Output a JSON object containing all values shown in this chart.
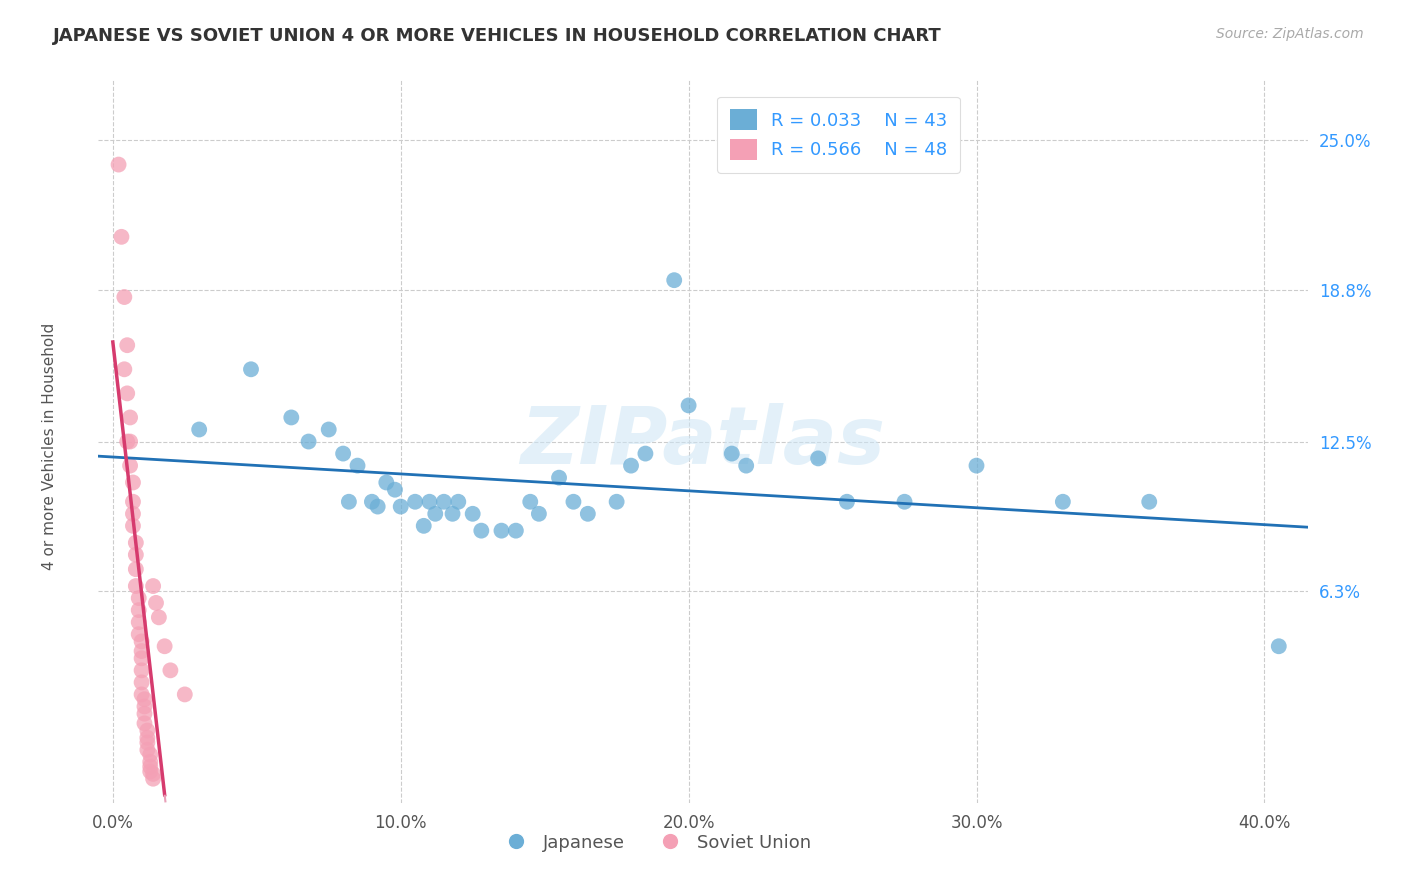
{
  "title": "JAPANESE VS SOVIET UNION 4 OR MORE VEHICLES IN HOUSEHOLD CORRELATION CHART",
  "source": "Source: ZipAtlas.com",
  "ylabel": "4 or more Vehicles in Household",
  "xlabel_ticks": [
    "0.0%",
    "10.0%",
    "20.0%",
    "30.0%",
    "40.0%"
  ],
  "xlabel_vals": [
    0.0,
    0.1,
    0.2,
    0.3,
    0.4
  ],
  "ylabel_ticks": [
    "6.3%",
    "12.5%",
    "18.8%",
    "25.0%"
  ],
  "ylabel_vals": [
    0.063,
    0.125,
    0.188,
    0.25
  ],
  "xlim": [
    -0.005,
    0.415
  ],
  "ylim": [
    -0.025,
    0.275
  ],
  "watermark": "ZIPatlas",
  "japanese_R": 0.033,
  "japanese_N": 43,
  "soviet_R": 0.566,
  "soviet_N": 48,
  "japanese_color": "#6baed6",
  "soviet_color": "#f4a0b5",
  "japanese_line_color": "#2171b5",
  "soviet_line_color": "#d63b6e",
  "soviet_line_dashed_color": "#e8a0b8",
  "grid_color": "#cccccc",
  "japanese_scatter": [
    [
      0.03,
      0.13
    ],
    [
      0.048,
      0.155
    ],
    [
      0.062,
      0.135
    ],
    [
      0.068,
      0.125
    ],
    [
      0.075,
      0.13
    ],
    [
      0.08,
      0.12
    ],
    [
      0.082,
      0.1
    ],
    [
      0.085,
      0.115
    ],
    [
      0.09,
      0.1
    ],
    [
      0.092,
      0.098
    ],
    [
      0.095,
      0.108
    ],
    [
      0.098,
      0.105
    ],
    [
      0.1,
      0.098
    ],
    [
      0.105,
      0.1
    ],
    [
      0.108,
      0.09
    ],
    [
      0.11,
      0.1
    ],
    [
      0.112,
      0.095
    ],
    [
      0.115,
      0.1
    ],
    [
      0.118,
      0.095
    ],
    [
      0.12,
      0.1
    ],
    [
      0.125,
      0.095
    ],
    [
      0.128,
      0.088
    ],
    [
      0.135,
      0.088
    ],
    [
      0.14,
      0.088
    ],
    [
      0.145,
      0.1
    ],
    [
      0.148,
      0.095
    ],
    [
      0.155,
      0.11
    ],
    [
      0.16,
      0.1
    ],
    [
      0.165,
      0.095
    ],
    [
      0.175,
      0.1
    ],
    [
      0.18,
      0.115
    ],
    [
      0.185,
      0.12
    ],
    [
      0.195,
      0.192
    ],
    [
      0.2,
      0.14
    ],
    [
      0.215,
      0.12
    ],
    [
      0.22,
      0.115
    ],
    [
      0.245,
      0.118
    ],
    [
      0.255,
      0.1
    ],
    [
      0.275,
      0.1
    ],
    [
      0.3,
      0.115
    ],
    [
      0.33,
      0.1
    ],
    [
      0.36,
      0.1
    ],
    [
      0.405,
      0.04
    ]
  ],
  "soviet_scatter": [
    [
      0.002,
      0.24
    ],
    [
      0.003,
      0.21
    ],
    [
      0.004,
      0.155
    ],
    [
      0.004,
      0.185
    ],
    [
      0.005,
      0.165
    ],
    [
      0.005,
      0.125
    ],
    [
      0.005,
      0.145
    ],
    [
      0.006,
      0.135
    ],
    [
      0.006,
      0.115
    ],
    [
      0.006,
      0.125
    ],
    [
      0.007,
      0.108
    ],
    [
      0.007,
      0.1
    ],
    [
      0.007,
      0.095
    ],
    [
      0.007,
      0.09
    ],
    [
      0.008,
      0.083
    ],
    [
      0.008,
      0.078
    ],
    [
      0.008,
      0.072
    ],
    [
      0.008,
      0.065
    ],
    [
      0.009,
      0.06
    ],
    [
      0.009,
      0.055
    ],
    [
      0.009,
      0.05
    ],
    [
      0.009,
      0.045
    ],
    [
      0.01,
      0.042
    ],
    [
      0.01,
      0.038
    ],
    [
      0.01,
      0.035
    ],
    [
      0.01,
      0.03
    ],
    [
      0.01,
      0.025
    ],
    [
      0.01,
      0.02
    ],
    [
      0.011,
      0.018
    ],
    [
      0.011,
      0.015
    ],
    [
      0.011,
      0.012
    ],
    [
      0.011,
      0.008
    ],
    [
      0.012,
      0.005
    ],
    [
      0.012,
      0.002
    ],
    [
      0.012,
      0.0
    ],
    [
      0.012,
      -0.003
    ],
    [
      0.013,
      -0.005
    ],
    [
      0.013,
      -0.008
    ],
    [
      0.013,
      -0.01
    ],
    [
      0.013,
      -0.012
    ],
    [
      0.014,
      -0.013
    ],
    [
      0.014,
      -0.015
    ],
    [
      0.014,
      0.065
    ],
    [
      0.015,
      0.058
    ],
    [
      0.016,
      0.052
    ],
    [
      0.018,
      0.04
    ],
    [
      0.02,
      0.03
    ],
    [
      0.025,
      0.02
    ]
  ]
}
